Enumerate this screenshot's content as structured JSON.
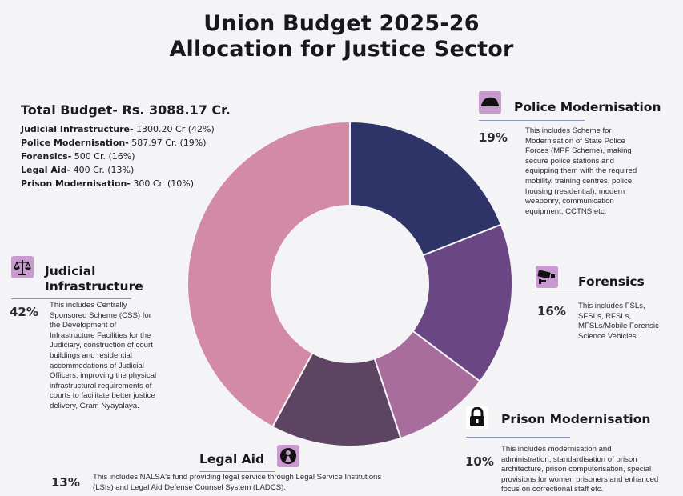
{
  "title_line1": "Union Budget 2025-26",
  "title_line2": "Allocation for Justice Sector",
  "total_budget": "Total Budget- Rs. 3088.17 Cr.",
  "summary": [
    {
      "label": "Judicial Infrastructure-",
      "value": " 1300.20 Cr (42%)"
    },
    {
      "label": "Police Modernisation-",
      "value": " 587.97 Cr. (19%)"
    },
    {
      "label": "Forensics-",
      "value": " 500 Cr. (16%)"
    },
    {
      "label": "Legal Aid-",
      "value": " 400 Cr. (13%)"
    },
    {
      "label": "Prison Modernisation-",
      "value": " 300 Cr. (10%)"
    }
  ],
  "sections": {
    "police": {
      "title": "Police Modernisation",
      "pct": "19%",
      "desc": [
        "This includes Scheme for",
        "Modernisation of State Police",
        "Forces (MPF Scheme), making",
        "secure police stations and",
        "equipping them with the required",
        "mobility, training centres, police",
        "housing (residential), modern",
        "weaponry, communication",
        "equipment, CCTNS etc."
      ],
      "icon": "police-cap-icon"
    },
    "forensics": {
      "title": "Forensics",
      "pct": "16%",
      "desc": [
        "This includes FSLs,",
        "SFSLs, RFSLs,",
        "MFSLs/Mobile Forensic",
        "Science Vehicles."
      ],
      "icon": "cctv-camera-icon"
    },
    "prison": {
      "title": "Prison Modernisation",
      "pct": "10%",
      "desc": [
        "This includes modernisation and",
        "administration, standardisation of prison",
        "architecture, prison computerisation, special",
        "provisions for women prisoners and enhanced",
        "focus on correctional staff etc."
      ],
      "icon": "padlock-icon"
    },
    "legal": {
      "title": "Legal Aid",
      "pct": "13%",
      "desc": [
        "This includes NALSA's fund providing legal service through Legal Service Institutions",
        "(LSIs) and Legal Aid Defense Counsel System (LADCS)."
      ],
      "icon": "lawyer-icon"
    },
    "judicial": {
      "title_line1": "Judicial",
      "title_line2": "Infrastructure",
      "pct": "42%",
      "desc": [
        "This includes Centrally",
        "Sponsored Scheme (CSS) for",
        "the Development of",
        "Infrastructure Facilities for the",
        "Judiciary, construction of court",
        "buildings and residential",
        "accommodations of Judicial",
        "Officers, improving the physical",
        "infrastructural requirements of",
        "courts to facilitate better justice",
        "delivery, Gram Nyayalaya."
      ],
      "icon": "scales-of-justice-icon"
    }
  },
  "colors": {
    "police": "#2e3468",
    "forensics": "#6a4784",
    "prison": "#a86c9d",
    "legal": "#5c4462",
    "judicial": "#d28aa7",
    "icon_bg": "#c99ad0"
  },
  "chart_data": {
    "type": "pie",
    "donut": true,
    "title": "Union Budget 2025-26 Allocation for Justice Sector",
    "unit": "Cr.",
    "categories": [
      "Police Modernisation",
      "Forensics",
      "Prison Modernisation",
      "Legal Aid",
      "Judicial Infrastructure"
    ],
    "values": [
      587.97,
      500,
      300,
      400,
      1300.2
    ],
    "percents": [
      19,
      16,
      10,
      13,
      42
    ]
  }
}
